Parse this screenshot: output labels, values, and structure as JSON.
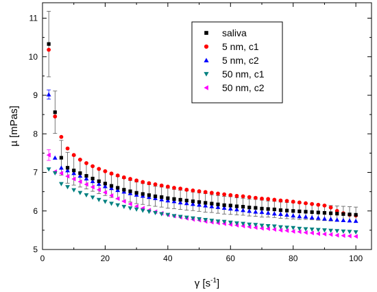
{
  "chart_data": {
    "type": "scatter",
    "xlabel": "γ [s",
    "xlabel_sup": "-1",
    "xlabel_close": "]",
    "ylabel": "µ [mPas]",
    "xlim": [
      0,
      105
    ],
    "ylim": [
      5,
      11.4
    ],
    "xticks": [
      0,
      20,
      40,
      60,
      80,
      100
    ],
    "yticks": [
      5,
      6,
      7,
      8,
      9,
      10,
      11
    ],
    "legend_position": "top-right",
    "series": [
      {
        "name": "saliva",
        "marker": "square",
        "color": "#000000",
        "values": [
          10.33,
          8.56,
          7.38,
          7.12,
          7.05,
          6.98,
          6.91,
          6.84,
          6.77,
          6.71,
          6.65,
          6.6,
          6.55,
          6.51,
          6.47,
          6.44,
          6.41,
          6.38,
          6.36,
          6.33,
          6.31,
          6.29,
          6.27,
          6.25,
          6.23,
          6.21,
          6.19,
          6.17,
          6.15,
          6.14,
          6.12,
          6.11,
          6.09,
          6.08,
          6.06,
          6.05,
          6.04,
          6.02,
          6.01,
          6.0,
          5.99,
          5.98,
          5.97,
          5.96,
          5.95,
          5.94,
          5.93,
          5.92,
          5.91,
          5.9
        ]
      },
      {
        "name": "5 nm, c1",
        "marker": "circle",
        "color": "#ff0000",
        "values": [
          10.18,
          8.45,
          7.92,
          7.62,
          7.45,
          7.33,
          7.24,
          7.16,
          7.09,
          7.03,
          6.97,
          6.92,
          6.87,
          6.83,
          6.79,
          6.75,
          6.72,
          6.69,
          6.66,
          6.63,
          6.6,
          6.58,
          6.55,
          6.53,
          6.51,
          6.49,
          6.47,
          6.45,
          6.43,
          6.41,
          6.39,
          6.38,
          6.36,
          6.34,
          6.32,
          6.31,
          6.29,
          6.27,
          6.26,
          6.24,
          6.22,
          6.2,
          6.18,
          6.16,
          6.14,
          6.09,
          6.0,
          5.94,
          5.9,
          5.88
        ]
      },
      {
        "name": "5 nm, c2",
        "marker": "triangle-up",
        "color": "#0000ff",
        "values": [
          9.02,
          7.38,
          7.12,
          7.05,
          6.98,
          6.91,
          6.84,
          6.77,
          6.7,
          6.64,
          6.59,
          6.54,
          6.5,
          6.46,
          6.42,
          6.39,
          6.36,
          6.33,
          6.3,
          6.27,
          6.25,
          6.22,
          6.2,
          6.18,
          6.16,
          6.14,
          6.12,
          6.1,
          6.08,
          6.06,
          6.04,
          6.02,
          6.0,
          5.98,
          5.97,
          5.95,
          5.93,
          5.92,
          5.9,
          5.88,
          5.86,
          5.85,
          5.83,
          5.82,
          5.8,
          5.79,
          5.77,
          5.76,
          5.75,
          5.74
        ]
      },
      {
        "name": "50 nm, c1",
        "marker": "triangle-down",
        "color": "#008080",
        "values": [
          7.08,
          6.98,
          6.7,
          6.62,
          6.54,
          6.47,
          6.41,
          6.35,
          6.29,
          6.24,
          6.19,
          6.15,
          6.11,
          6.07,
          6.04,
          6.01,
          5.98,
          5.95,
          5.92,
          5.9,
          5.87,
          5.85,
          5.83,
          5.81,
          5.79,
          5.77,
          5.75,
          5.73,
          5.72,
          5.7,
          5.68,
          5.67,
          5.65,
          5.64,
          5.62,
          5.61,
          5.6,
          5.58,
          5.57,
          5.56,
          5.54,
          5.53,
          5.52,
          5.51,
          5.5,
          5.49,
          5.48,
          5.47,
          5.46,
          5.45
        ]
      },
      {
        "name": "50 nm, c2",
        "marker": "triangle-left",
        "color": "#ff00ff",
        "values": [
          7.45,
          7.02,
          6.98,
          6.9,
          6.83,
          6.76,
          6.69,
          6.62,
          6.55,
          6.48,
          6.4,
          6.32,
          6.25,
          6.18,
          6.12,
          6.07,
          6.02,
          5.98,
          5.94,
          5.9,
          5.87,
          5.84,
          5.81,
          5.78,
          5.76,
          5.73,
          5.71,
          5.69,
          5.67,
          5.65,
          5.63,
          5.61,
          5.59,
          5.57,
          5.55,
          5.54,
          5.52,
          5.5,
          5.49,
          5.47,
          5.46,
          5.44,
          5.43,
          5.41,
          5.4,
          5.39,
          5.37,
          5.36,
          5.35,
          5.34
        ]
      }
    ],
    "x": [
      2,
      4,
      6,
      8,
      10,
      12,
      14,
      16,
      18,
      20,
      22,
      24,
      26,
      28,
      30,
      32,
      34,
      36,
      38,
      40,
      42,
      44,
      46,
      48,
      50,
      52,
      54,
      56,
      58,
      60,
      62,
      64,
      66,
      68,
      70,
      72,
      74,
      76,
      78,
      80,
      82,
      84,
      86,
      88,
      90,
      92,
      94,
      96,
      98,
      100
    ],
    "error_bars": {
      "series": "saliva",
      "errors": [
        0.85,
        0.55,
        0.45,
        0.4,
        0.38,
        0.36,
        0.34,
        0.33,
        0.32,
        0.31,
        0.3,
        0.29,
        0.29,
        0.28,
        0.28,
        0.27,
        0.27,
        0.26,
        0.26,
        0.26,
        0.25,
        0.25,
        0.25,
        0.24,
        0.24,
        0.24,
        0.23,
        0.23,
        0.23,
        0.23,
        0.22,
        0.22,
        0.22,
        0.22,
        0.22,
        0.21,
        0.21,
        0.21,
        0.21,
        0.21,
        0.21,
        0.2,
        0.2,
        0.2,
        0.2,
        0.2,
        0.2,
        0.2,
        0.2,
        0.2
      ]
    },
    "extra_error_bars": [
      {
        "series": "5 nm, c2",
        "index": 0,
        "error": 0.12
      },
      {
        "series": "50 nm, c2",
        "index": 0,
        "error": 0.14
      }
    ]
  }
}
